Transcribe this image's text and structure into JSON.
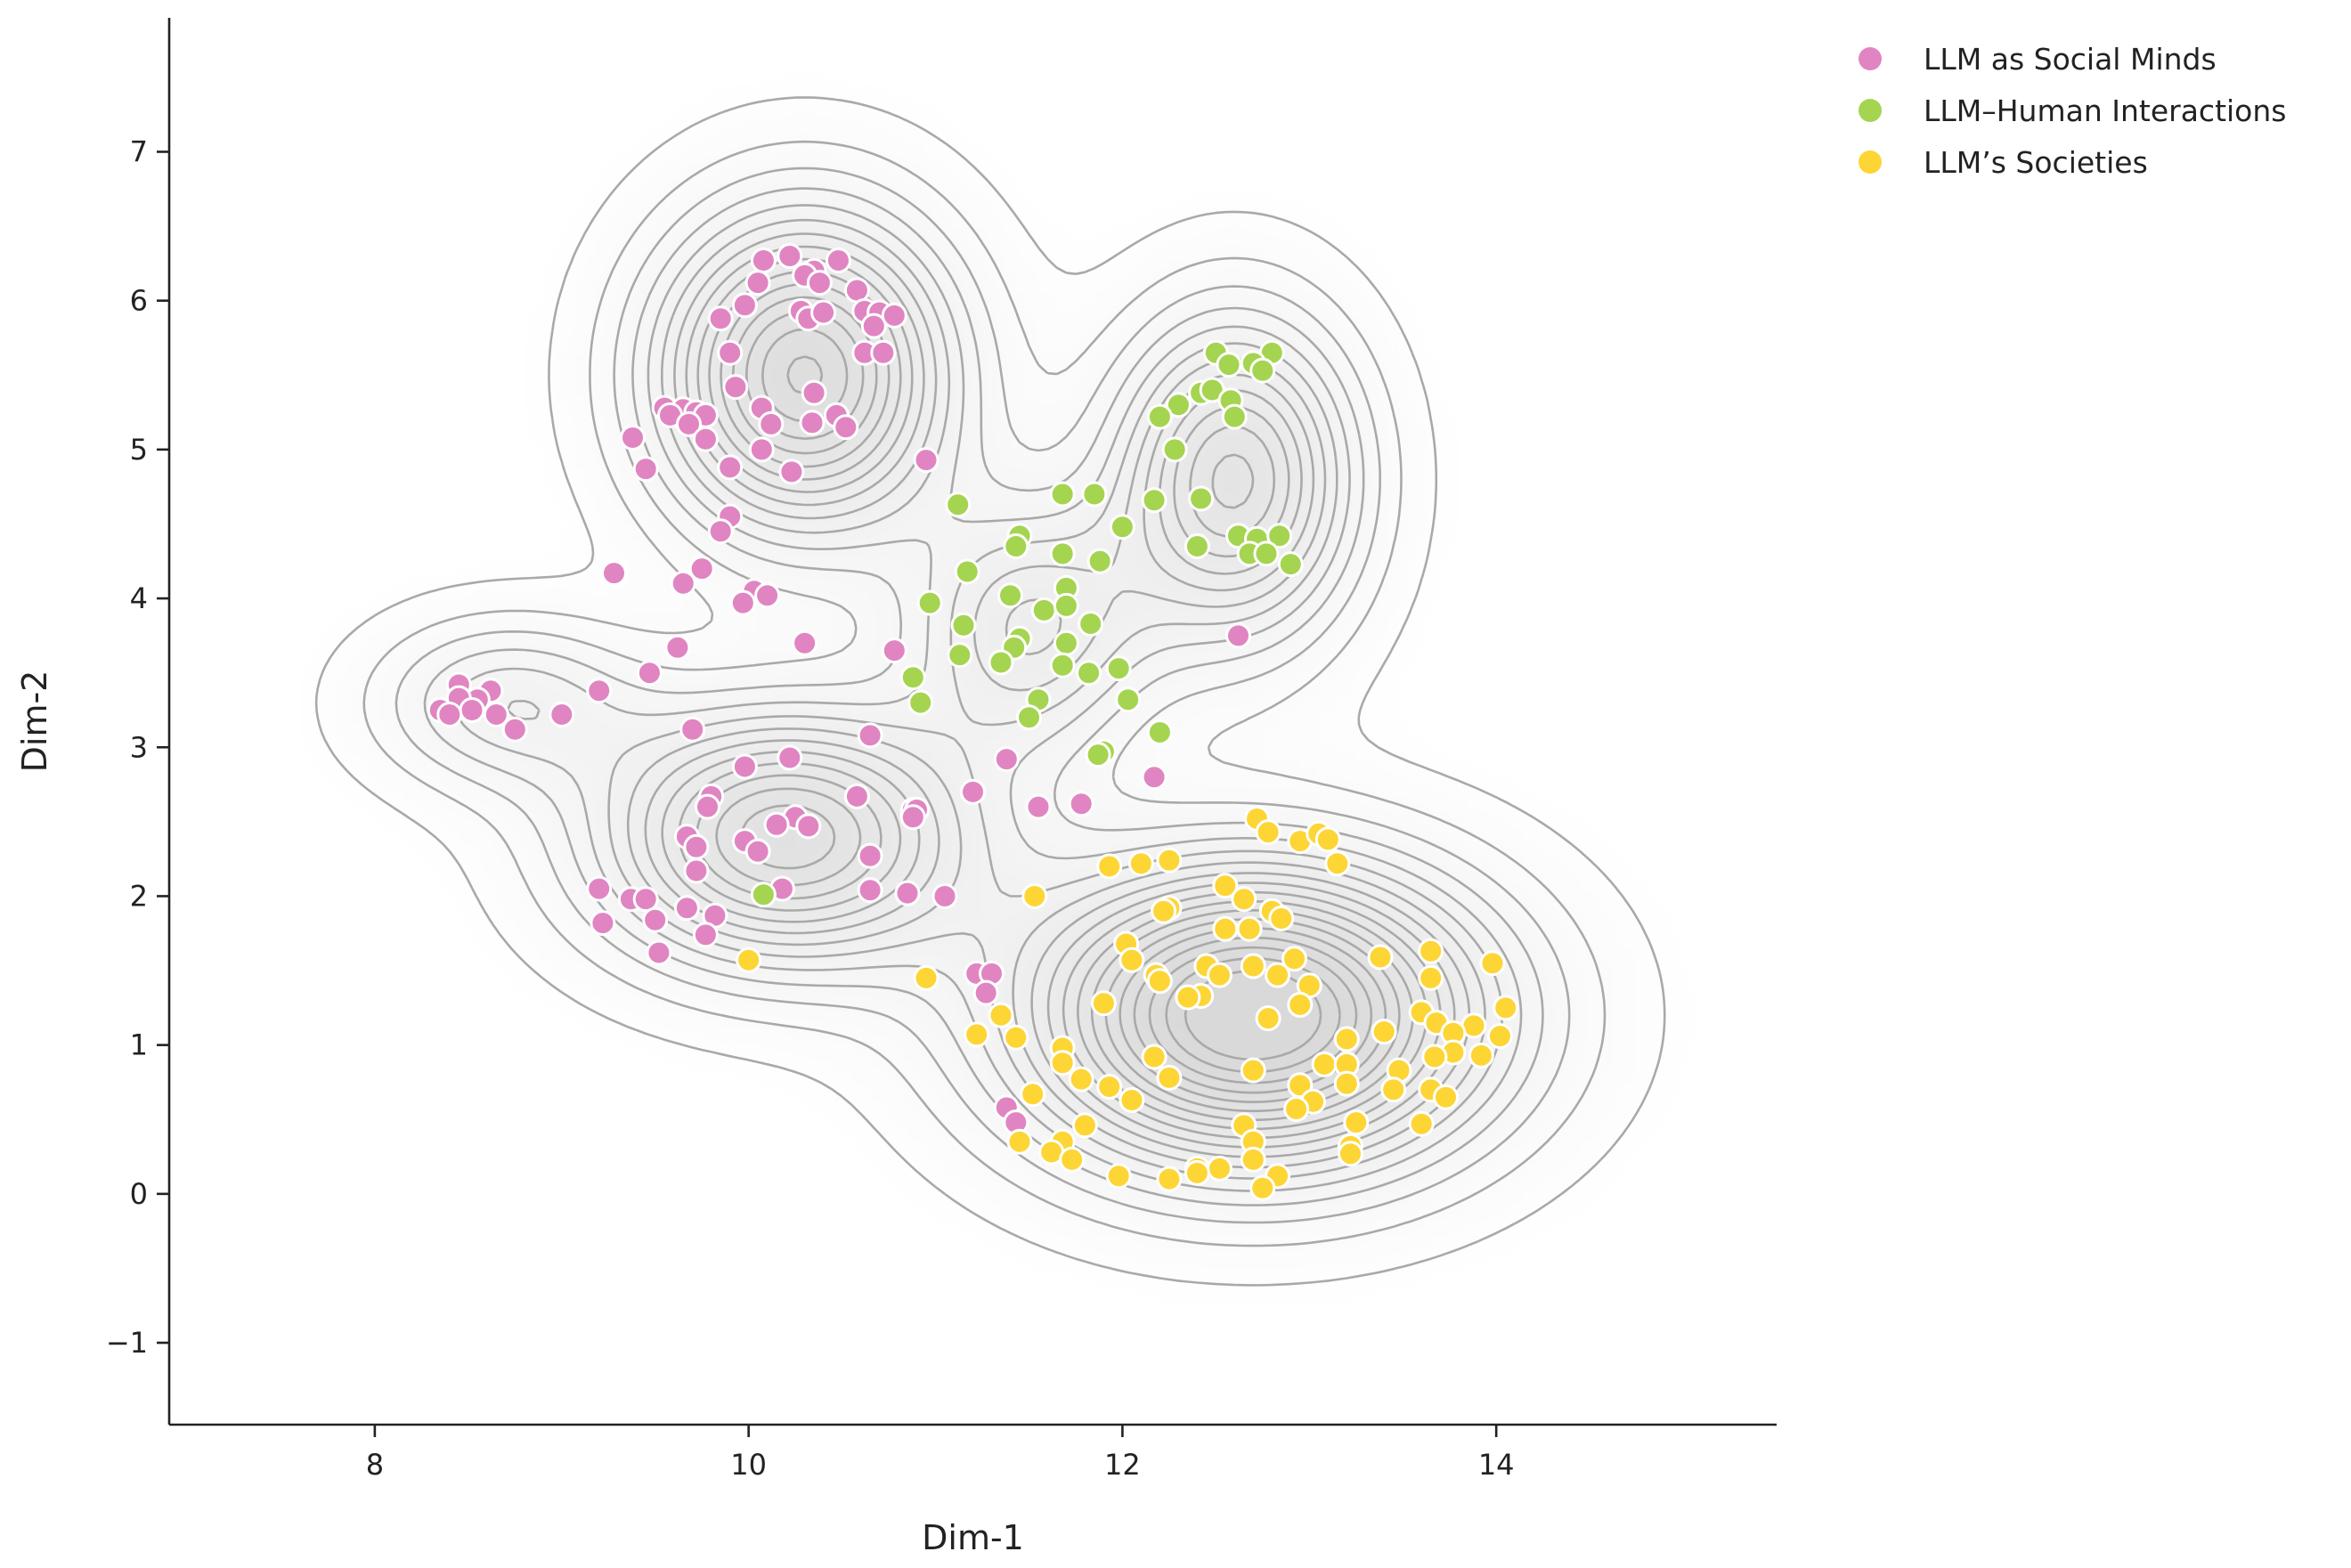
{
  "chart_data": {
    "type": "scatter",
    "xlabel": "Dim-1",
    "ylabel": "Dim-2",
    "xlim": [
      6.9,
      15.5
    ],
    "ylim": [
      -1.55,
      7.9
    ],
    "xticks": [
      8,
      10,
      12,
      14
    ],
    "yticks": [
      -1,
      0,
      1,
      2,
      3,
      4,
      5,
      6,
      7
    ],
    "grid": false,
    "legend_position": "top-right",
    "background": "kde-density-contours",
    "density_centers": [
      {
        "x": 10.3,
        "y": 5.5,
        "weight": 1.0,
        "sx": 0.55,
        "sy": 0.75
      },
      {
        "x": 10.2,
        "y": 2.4,
        "weight": 0.9,
        "sx": 0.7,
        "sy": 0.6
      },
      {
        "x": 12.7,
        "y": 1.2,
        "weight": 1.3,
        "sx": 0.85,
        "sy": 0.7
      },
      {
        "x": 12.6,
        "y": 4.8,
        "weight": 0.8,
        "sx": 0.45,
        "sy": 0.75
      },
      {
        "x": 11.5,
        "y": 3.8,
        "weight": 0.5,
        "sx": 0.45,
        "sy": 0.6
      },
      {
        "x": 8.7,
        "y": 3.3,
        "weight": 0.35,
        "sx": 0.5,
        "sy": 0.4
      }
    ],
    "series": [
      {
        "name": "LLM as Social Minds",
        "color": "#e085c2",
        "points": [
          [
            10.22,
            6.3
          ],
          [
            10.08,
            6.27
          ],
          [
            10.35,
            6.2
          ],
          [
            10.3,
            6.17
          ],
          [
            10.48,
            6.27
          ],
          [
            10.05,
            6.12
          ],
          [
            10.38,
            6.12
          ],
          [
            10.58,
            6.07
          ],
          [
            9.98,
            5.97
          ],
          [
            10.62,
            5.93
          ],
          [
            10.7,
            5.92
          ],
          [
            9.85,
            5.88
          ],
          [
            10.28,
            5.93
          ],
          [
            10.32,
            5.88
          ],
          [
            10.4,
            5.92
          ],
          [
            10.67,
            5.83
          ],
          [
            10.78,
            5.9
          ],
          [
            9.9,
            5.65
          ],
          [
            10.62,
            5.65
          ],
          [
            10.72,
            5.65
          ],
          [
            9.93,
            5.42
          ],
          [
            10.35,
            5.38
          ],
          [
            9.55,
            5.28
          ],
          [
            9.65,
            5.27
          ],
          [
            9.72,
            5.25
          ],
          [
            9.77,
            5.23
          ],
          [
            9.58,
            5.23
          ],
          [
            10.07,
            5.28
          ],
          [
            10.47,
            5.23
          ],
          [
            9.68,
            5.17
          ],
          [
            10.12,
            5.17
          ],
          [
            10.34,
            5.18
          ],
          [
            10.52,
            5.15
          ],
          [
            9.38,
            5.08
          ],
          [
            9.77,
            5.07
          ],
          [
            10.07,
            5.0
          ],
          [
            10.23,
            4.85
          ],
          [
            9.45,
            4.87
          ],
          [
            9.9,
            4.88
          ],
          [
            10.95,
            4.93
          ],
          [
            9.9,
            4.55
          ],
          [
            9.85,
            4.45
          ],
          [
            9.28,
            4.17
          ],
          [
            9.75,
            4.2
          ],
          [
            9.65,
            4.1
          ],
          [
            10.03,
            4.05
          ],
          [
            10.1,
            4.02
          ],
          [
            9.97,
            3.97
          ],
          [
            10.3,
            3.7
          ],
          [
            9.62,
            3.67
          ],
          [
            10.78,
            3.65
          ],
          [
            12.62,
            3.75
          ],
          [
            9.47,
            3.5
          ],
          [
            8.45,
            3.42
          ],
          [
            8.62,
            3.38
          ],
          [
            9.2,
            3.38
          ],
          [
            8.55,
            3.32
          ],
          [
            8.45,
            3.33
          ],
          [
            8.35,
            3.25
          ],
          [
            8.52,
            3.25
          ],
          [
            8.65,
            3.22
          ],
          [
            8.4,
            3.22
          ],
          [
            9.0,
            3.22
          ],
          [
            8.75,
            3.12
          ],
          [
            9.7,
            3.12
          ],
          [
            10.65,
            3.08
          ],
          [
            10.22,
            2.93
          ],
          [
            9.98,
            2.87
          ],
          [
            11.38,
            2.92
          ],
          [
            12.17,
            2.8
          ],
          [
            11.2,
            2.7
          ],
          [
            9.8,
            2.67
          ],
          [
            10.58,
            2.67
          ],
          [
            11.55,
            2.6
          ],
          [
            11.78,
            2.62
          ],
          [
            9.78,
            2.6
          ],
          [
            10.88,
            2.58
          ],
          [
            10.9,
            2.58
          ],
          [
            10.88,
            2.53
          ],
          [
            10.25,
            2.53
          ],
          [
            10.15,
            2.48
          ],
          [
            10.32,
            2.47
          ],
          [
            9.67,
            2.4
          ],
          [
            9.98,
            2.37
          ],
          [
            10.05,
            2.3
          ],
          [
            10.65,
            2.27
          ],
          [
            9.72,
            2.33
          ],
          [
            9.72,
            2.17
          ],
          [
            9.2,
            2.05
          ],
          [
            10.18,
            2.05
          ],
          [
            10.65,
            2.04
          ],
          [
            10.85,
            2.02
          ],
          [
            11.05,
            2.0
          ],
          [
            9.37,
            1.98
          ],
          [
            9.45,
            1.98
          ],
          [
            9.67,
            1.92
          ],
          [
            9.82,
            1.87
          ],
          [
            9.5,
            1.84
          ],
          [
            9.22,
            1.82
          ],
          [
            9.77,
            1.74
          ],
          [
            9.52,
            1.62
          ],
          [
            11.22,
            1.48
          ],
          [
            11.3,
            1.48
          ],
          [
            11.27,
            1.35
          ],
          [
            11.38,
            0.58
          ],
          [
            11.43,
            0.48
          ]
        ]
      },
      {
        "name": "LLM–Human Interactions",
        "color": "#a5d450",
        "points": [
          [
            12.5,
            5.65
          ],
          [
            12.8,
            5.65
          ],
          [
            12.7,
            5.58
          ],
          [
            12.57,
            5.57
          ],
          [
            12.75,
            5.53
          ],
          [
            12.42,
            5.38
          ],
          [
            12.48,
            5.4
          ],
          [
            12.3,
            5.3
          ],
          [
            12.58,
            5.33
          ],
          [
            12.2,
            5.22
          ],
          [
            12.6,
            5.22
          ],
          [
            12.28,
            5.0
          ],
          [
            12.17,
            4.66
          ],
          [
            12.42,
            4.67
          ],
          [
            11.68,
            4.7
          ],
          [
            11.85,
            4.7
          ],
          [
            11.12,
            4.63
          ],
          [
            12.0,
            4.48
          ],
          [
            11.45,
            4.42
          ],
          [
            12.62,
            4.42
          ],
          [
            12.72,
            4.4
          ],
          [
            12.84,
            4.42
          ],
          [
            11.43,
            4.35
          ],
          [
            12.4,
            4.35
          ],
          [
            11.68,
            4.3
          ],
          [
            12.68,
            4.3
          ],
          [
            12.77,
            4.3
          ],
          [
            11.88,
            4.25
          ],
          [
            12.9,
            4.23
          ],
          [
            11.17,
            4.18
          ],
          [
            11.7,
            4.07
          ],
          [
            11.4,
            4.02
          ],
          [
            10.97,
            3.97
          ],
          [
            11.58,
            3.92
          ],
          [
            11.7,
            3.95
          ],
          [
            11.83,
            3.83
          ],
          [
            11.15,
            3.82
          ],
          [
            11.45,
            3.73
          ],
          [
            11.42,
            3.67
          ],
          [
            11.7,
            3.7
          ],
          [
            11.13,
            3.62
          ],
          [
            11.35,
            3.57
          ],
          [
            11.68,
            3.55
          ],
          [
            11.82,
            3.5
          ],
          [
            11.98,
            3.53
          ],
          [
            10.88,
            3.47
          ],
          [
            11.55,
            3.32
          ],
          [
            12.03,
            3.32
          ],
          [
            10.92,
            3.3
          ],
          [
            11.5,
            3.2
          ],
          [
            12.2,
            3.1
          ],
          [
            11.9,
            2.97
          ],
          [
            11.87,
            2.95
          ],
          [
            10.08,
            2.01
          ]
        ]
      },
      {
        "name": "LLM’s Societies",
        "color": "#fdd535",
        "points": [
          [
            12.72,
            2.52
          ],
          [
            12.78,
            2.43
          ],
          [
            12.95,
            2.37
          ],
          [
            13.05,
            2.42
          ],
          [
            13.1,
            2.38
          ],
          [
            13.15,
            2.22
          ],
          [
            12.25,
            2.24
          ],
          [
            12.1,
            2.22
          ],
          [
            11.93,
            2.2
          ],
          [
            12.55,
            2.07
          ],
          [
            11.53,
            2.0
          ],
          [
            12.65,
            1.98
          ],
          [
            12.25,
            1.92
          ],
          [
            12.22,
            1.9
          ],
          [
            12.8,
            1.9
          ],
          [
            12.85,
            1.85
          ],
          [
            12.55,
            1.78
          ],
          [
            12.68,
            1.78
          ],
          [
            12.02,
            1.68
          ],
          [
            13.65,
            1.63
          ],
          [
            12.05,
            1.57
          ],
          [
            12.92,
            1.58
          ],
          [
            13.38,
            1.59
          ],
          [
            12.45,
            1.53
          ],
          [
            12.7,
            1.53
          ],
          [
            13.98,
            1.55
          ],
          [
            12.18,
            1.47
          ],
          [
            12.52,
            1.47
          ],
          [
            12.83,
            1.47
          ],
          [
            12.2,
            1.43
          ],
          [
            10.95,
            1.45
          ],
          [
            13.0,
            1.4
          ],
          [
            13.65,
            1.45
          ],
          [
            12.42,
            1.33
          ],
          [
            12.35,
            1.32
          ],
          [
            11.9,
            1.28
          ],
          [
            12.95,
            1.27
          ],
          [
            13.6,
            1.22
          ],
          [
            14.05,
            1.25
          ],
          [
            11.35,
            1.2
          ],
          [
            12.78,
            1.18
          ],
          [
            13.68,
            1.15
          ],
          [
            13.88,
            1.13
          ],
          [
            13.77,
            1.08
          ],
          [
            13.4,
            1.09
          ],
          [
            14.02,
            1.06
          ],
          [
            11.22,
            1.07
          ],
          [
            11.43,
            1.05
          ],
          [
            13.2,
            1.04
          ],
          [
            11.68,
            0.98
          ],
          [
            13.77,
            0.95
          ],
          [
            13.92,
            0.93
          ],
          [
            13.67,
            0.92
          ],
          [
            12.17,
            0.92
          ],
          [
            11.68,
            0.88
          ],
          [
            13.08,
            0.87
          ],
          [
            13.2,
            0.87
          ],
          [
            13.48,
            0.83
          ],
          [
            12.7,
            0.83
          ],
          [
            12.25,
            0.78
          ],
          [
            11.78,
            0.77
          ],
          [
            13.2,
            0.74
          ],
          [
            11.93,
            0.72
          ],
          [
            12.95,
            0.73
          ],
          [
            13.45,
            0.7
          ],
          [
            13.65,
            0.7
          ],
          [
            13.73,
            0.65
          ],
          [
            11.52,
            0.67
          ],
          [
            12.05,
            0.63
          ],
          [
            13.02,
            0.62
          ],
          [
            12.93,
            0.57
          ],
          [
            13.25,
            0.48
          ],
          [
            13.6,
            0.47
          ],
          [
            11.8,
            0.46
          ],
          [
            12.65,
            0.46
          ],
          [
            11.45,
            0.35
          ],
          [
            11.68,
            0.35
          ],
          [
            12.7,
            0.35
          ],
          [
            13.22,
            0.32
          ],
          [
            11.62,
            0.28
          ],
          [
            13.22,
            0.27
          ],
          [
            11.73,
            0.23
          ],
          [
            12.7,
            0.23
          ],
          [
            12.4,
            0.17
          ],
          [
            12.52,
            0.17
          ],
          [
            12.4,
            0.14
          ],
          [
            12.83,
            0.12
          ],
          [
            11.98,
            0.12
          ],
          [
            12.25,
            0.1
          ],
          [
            12.75,
            0.04
          ],
          [
            10.0,
            1.57
          ]
        ]
      }
    ]
  }
}
